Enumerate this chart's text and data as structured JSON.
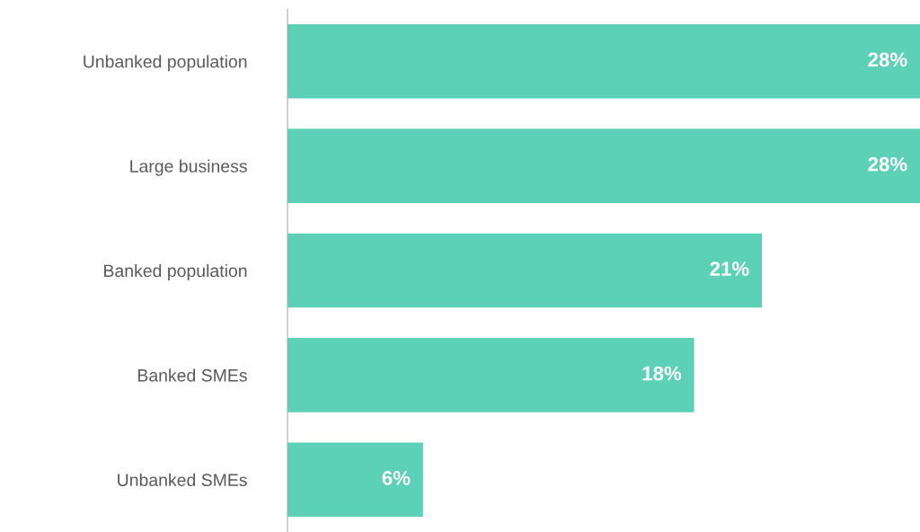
{
  "chart_data": {
    "type": "bar",
    "orientation": "horizontal",
    "categories": [
      "Unbanked population",
      "Large business",
      "Banked population",
      "Banked SMEs",
      "Unbanked SMEs"
    ],
    "values": [
      28,
      28,
      21,
      18,
      6
    ],
    "value_labels": [
      "28%",
      "28%",
      "21%",
      "18%",
      "6%"
    ],
    "color": "#5dd0b8",
    "xlim": [
      0,
      28
    ],
    "tick_labels": "y",
    "grid": false,
    "legend": false
  }
}
